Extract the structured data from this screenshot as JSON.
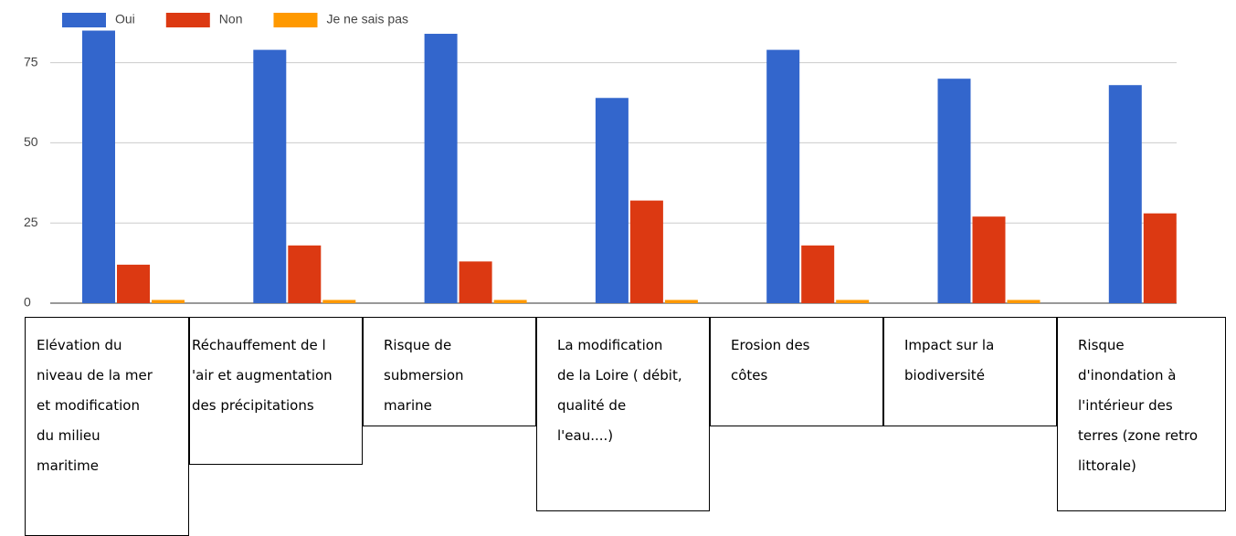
{
  "chart_data": {
    "type": "bar",
    "categories": [
      "Elévation du niveau de la mer et modification du milieu maritime",
      "Réchauffement de l 'air et augmentation des précipitations",
      "Risque de submersion marine",
      "La modification de la Loire ( débit, qualité de l'eau....)",
      "Erosion des côtes",
      "Impact sur la biodiversité",
      "Risque d'inondation à l'intérieur des terres (zone retro littorale)"
    ],
    "series": [
      {
        "name": "Oui",
        "color": "#3366cc",
        "values": [
          85,
          79,
          84,
          64,
          79,
          70,
          68
        ]
      },
      {
        "name": "Non",
        "color": "#dc3912",
        "values": [
          12,
          18,
          13,
          32,
          18,
          27,
          28
        ]
      },
      {
        "name": "Je ne sais pas",
        "color": "#ff9900",
        "values": [
          1,
          1,
          1,
          1,
          1,
          1,
          0
        ]
      }
    ],
    "ylim": [
      0,
      86
    ],
    "yticks": [
      0,
      25,
      50,
      75
    ],
    "grid": true,
    "legend": "top"
  }
}
